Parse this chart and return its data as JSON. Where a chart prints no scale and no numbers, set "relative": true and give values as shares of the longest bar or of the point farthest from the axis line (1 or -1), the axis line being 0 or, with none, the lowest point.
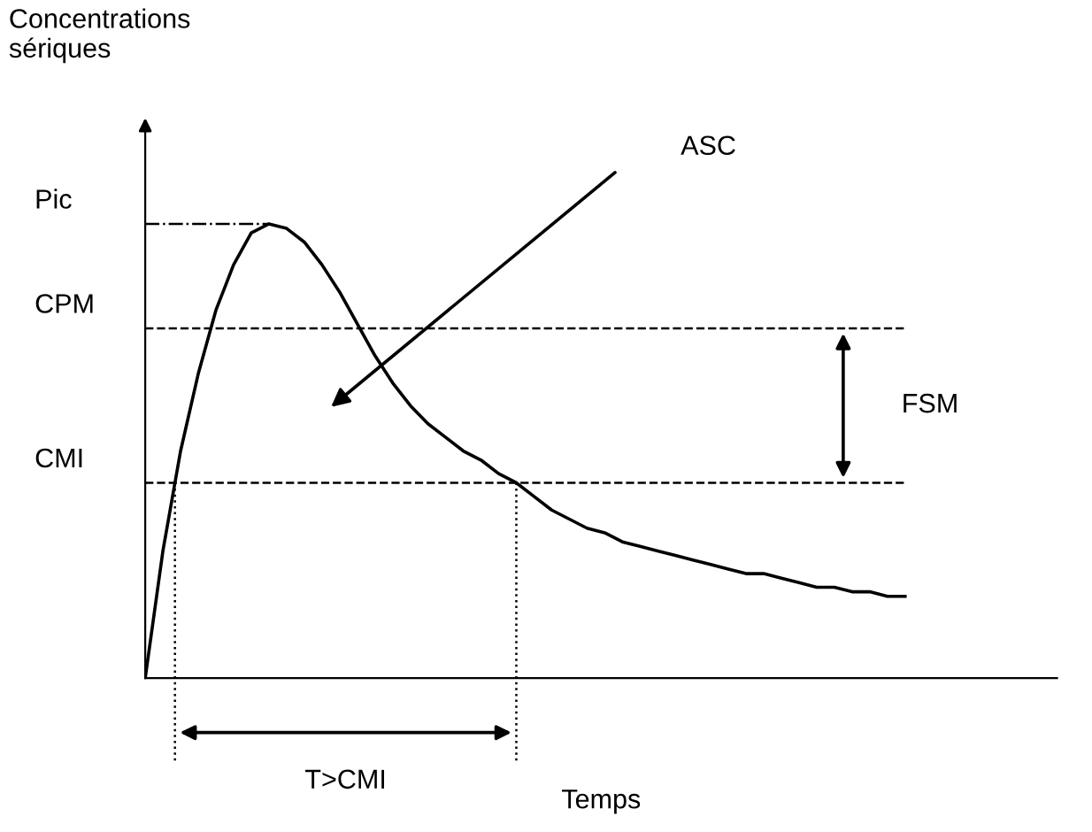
{
  "chart_data": {
    "type": "line",
    "relative": true,
    "xlabel": "Temps",
    "categories": [
      null,
      null,
      null,
      null,
      null,
      null,
      null,
      null,
      null,
      null,
      null,
      null,
      null,
      null,
      null,
      null,
      null,
      null,
      null,
      null,
      null,
      null,
      null,
      null,
      null,
      null,
      null,
      null,
      null,
      null,
      null,
      null,
      null,
      null,
      null,
      null,
      null,
      null,
      null,
      null,
      null,
      null,
      null,
      null
    ],
    "series": [
      {
        "color": "#000000",
        "values": [
          0,
          0.28,
          0.5,
          0.67,
          0.81,
          0.91,
          0.98,
          1,
          0.99,
          0.96,
          0.91,
          0.85,
          0.78,
          0.71,
          0.65,
          0.6,
          0.56,
          0.53,
          0.5,
          0.48,
          0.45,
          0.43,
          0.4,
          0.37,
          0.35,
          0.33,
          0.32,
          0.3,
          0.29,
          0.28,
          0.27,
          0.26,
          0.25,
          0.24,
          0.23,
          0.23,
          0.22,
          0.21,
          0.2,
          0.2,
          0.19,
          0.19,
          0.18,
          0.18
        ]
      }
    ],
    "ref_lines": [
      {
        "axis": "y",
        "value": 1,
        "label": "Pic",
        "line_style": "dashdot",
        "color": "#000000"
      },
      {
        "axis": "y",
        "value": 0.77,
        "label": "CPM",
        "line_style": "dashed",
        "color": "#000000"
      },
      {
        "axis": "y",
        "value": 0.43,
        "label": "CMI",
        "line_style": "dashed",
        "color": "#000000"
      }
    ],
    "annotations": [
      "Concentrations\nsériques",
      "ASC",
      "FSM",
      "T>CMI"
    ],
    "marker": "none",
    "line_style": "solid",
    "legend": false
  }
}
